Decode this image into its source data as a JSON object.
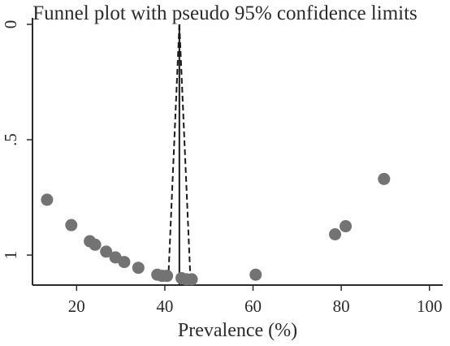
{
  "chart_data": {
    "type": "scatter",
    "title": "Funnel plot with pseudo 95% confidence limits",
    "xlabel": "Prevalence (%)",
    "ylabel": "",
    "xlim": [
      10,
      103
    ],
    "ylim": [
      0,
      1.13
    ],
    "y_reversed": true,
    "x_ticks": [
      20,
      40,
      60,
      80,
      100
    ],
    "x_tick_labels": [
      "20",
      "40",
      "60",
      "80",
      "100"
    ],
    "y_ticks": [
      0,
      0.5,
      1
    ],
    "y_tick_labels": [
      "0",
      ".5",
      "1"
    ],
    "y_tick_label_rotation": -90,
    "grid": false,
    "legend": "none",
    "marker_color": "#737373",
    "line_color": "#1a1a1a",
    "pooled_estimate": 43.3,
    "funnel_limits": {
      "apex": [
        43.3,
        0
      ],
      "lower": [
        [
          43.3,
          0
        ],
        [
          40.8,
          1.1
        ]
      ],
      "upper": [
        [
          43.3,
          0
        ],
        [
          45.8,
          1.1
        ]
      ]
    },
    "points": [
      {
        "x": 13.3,
        "y": 0.76
      },
      {
        "x": 18.8,
        "y": 0.87
      },
      {
        "x": 23.0,
        "y": 0.94
      },
      {
        "x": 24.2,
        "y": 0.955
      },
      {
        "x": 26.7,
        "y": 0.985
      },
      {
        "x": 28.8,
        "y": 1.01
      },
      {
        "x": 30.8,
        "y": 1.03
      },
      {
        "x": 34.0,
        "y": 1.055
      },
      {
        "x": 38.3,
        "y": 1.085
      },
      {
        "x": 39.4,
        "y": 1.09
      },
      {
        "x": 40.5,
        "y": 1.09
      },
      {
        "x": 43.8,
        "y": 1.1
      },
      {
        "x": 44.9,
        "y": 1.105
      },
      {
        "x": 46.1,
        "y": 1.105
      },
      {
        "x": 60.6,
        "y": 1.085
      },
      {
        "x": 78.6,
        "y": 0.91
      },
      {
        "x": 81.0,
        "y": 0.875
      },
      {
        "x": 89.7,
        "y": 0.67
      }
    ]
  }
}
